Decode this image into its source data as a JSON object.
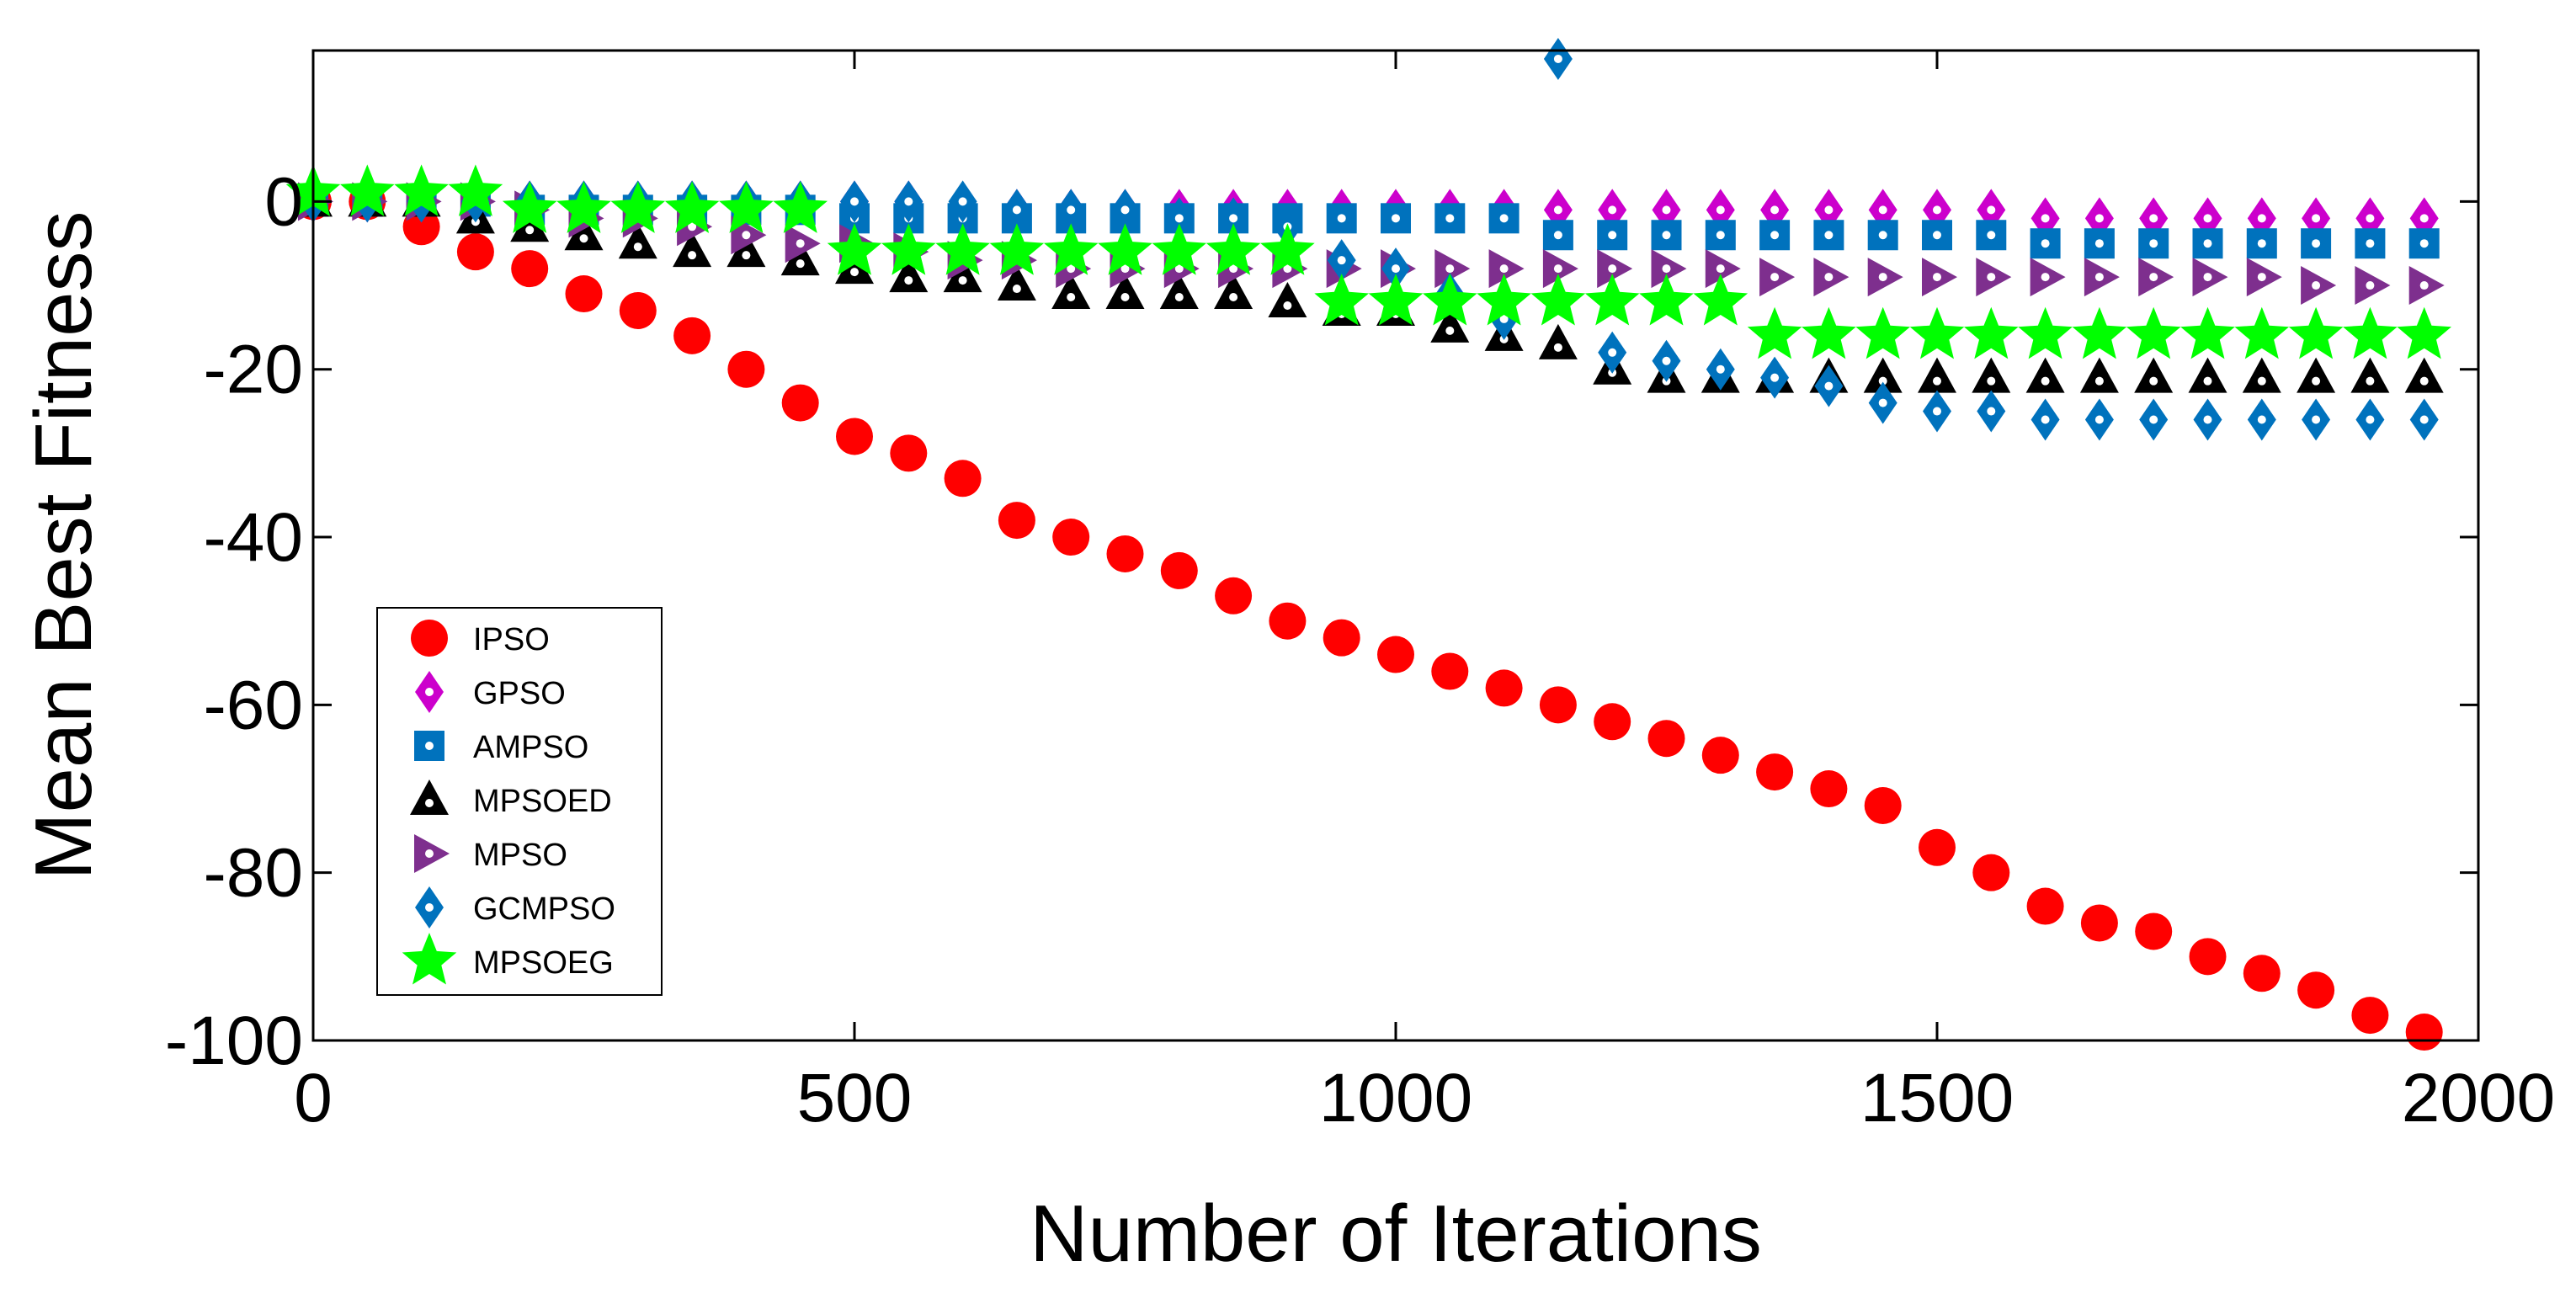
{
  "chart_data": {
    "type": "scatter",
    "title": "",
    "xlabel": "Number of Iterations",
    "ylabel": "Mean Best Fitness",
    "xlim": [
      0,
      2000
    ],
    "ylim": [
      -100,
      18
    ],
    "grid": false,
    "legend_position": "bottom-left",
    "x_ticks": [
      0,
      500,
      1000,
      1500,
      2000
    ],
    "x_tick_labels": [
      "0",
      "500",
      "1000",
      "1500",
      "2000"
    ],
    "y_ticks": [
      0,
      -20,
      -40,
      -60,
      -80,
      -100
    ],
    "y_tick_labels": [
      "0",
      "-20",
      "-40",
      "-60",
      "-80",
      "-100"
    ],
    "x": [
      0,
      50,
      100,
      150,
      200,
      250,
      300,
      350,
      400,
      450,
      500,
      550,
      600,
      650,
      700,
      750,
      800,
      850,
      900,
      950,
      1000,
      1050,
      1100,
      1150,
      1200,
      1250,
      1300,
      1350,
      1400,
      1450,
      1500,
      1550,
      1600,
      1650,
      1700,
      1750,
      1800,
      1850,
      1900,
      1950
    ],
    "series": [
      {
        "name": "IPSO",
        "marker": "circle",
        "color": "#ff0000",
        "inner_dot": false,
        "values": [
          0,
          0,
          -3,
          -6,
          -8,
          -11,
          -13,
          -16,
          -20,
          -24,
          -28,
          -30,
          -33,
          -38,
          -40,
          -42,
          -44,
          -47,
          -50,
          -52,
          -54,
          -56,
          -58,
          -60,
          -62,
          -64,
          -66,
          -68,
          -70,
          -72,
          -77,
          -80,
          -84,
          -86,
          -87,
          -90,
          -92,
          -94,
          -97,
          -99
        ]
      },
      {
        "name": "GPSO",
        "marker": "diamond",
        "color": "#cc00cc",
        "inner_dot": true,
        "values": [
          0,
          0,
          0,
          0,
          0,
          0,
          0,
          0,
          0,
          0,
          0,
          0,
          -1,
          -1,
          -1,
          -1,
          -1,
          -1,
          -1,
          -1,
          -1,
          -1,
          -1,
          -1,
          -1,
          -1,
          -1,
          -1,
          -1,
          -1,
          -1,
          -1,
          -2,
          -2,
          -2,
          -2,
          -2,
          -2,
          -2,
          -2
        ]
      },
      {
        "name": "AMPSO",
        "marker": "square",
        "color": "#0072bd",
        "inner_dot": true,
        "values": [
          0,
          0,
          0,
          0,
          -1,
          -1,
          -1,
          -1,
          -1,
          -1,
          -2,
          -2,
          -2,
          -2,
          -2,
          -2,
          -2,
          -2,
          -2,
          -2,
          -2,
          -2,
          -2,
          -4,
          -4,
          -4,
          -4,
          -4,
          -4,
          -4,
          -4,
          -4,
          -5,
          -5,
          -5,
          -5,
          -5,
          -5,
          -5,
          -5
        ]
      },
      {
        "name": "MPSOED",
        "marker": "triangle-up",
        "color": "#000000",
        "inner_dot": true,
        "values": [
          0,
          0,
          0,
          -2,
          -3,
          -4,
          -5,
          -6,
          -6,
          -7,
          -8,
          -9,
          -9,
          -10,
          -11,
          -11,
          -11,
          -11,
          -12,
          -13,
          -13,
          -15,
          -16,
          -17,
          -20,
          -21,
          -21,
          -21,
          -21,
          -21,
          -21,
          -21,
          -21,
          -21,
          -21,
          -21,
          -21,
          -21,
          -21,
          -21
        ]
      },
      {
        "name": "MPSO",
        "marker": "triangle-right",
        "color": "#7e2f8e",
        "inner_dot": true,
        "values": [
          0,
          0,
          0,
          0,
          -1,
          -2,
          -2,
          -3,
          -4,
          -5,
          -5,
          -6,
          -7,
          -7,
          -8,
          -8,
          -8,
          -8,
          -8,
          -8,
          -8,
          -8,
          -8,
          -8,
          -8,
          -8,
          -8,
          -9,
          -9,
          -9,
          -9,
          -9,
          -9,
          -9,
          -9,
          -9,
          -9,
          -10,
          -10,
          -10
        ]
      },
      {
        "name": "GCMPSO",
        "marker": "diamond",
        "color": "#0072bd",
        "inner_dot": true,
        "values": [
          0,
          0,
          0,
          0,
          0,
          0,
          0,
          0,
          0,
          0,
          0,
          0,
          0,
          -1,
          -1,
          -1,
          -2,
          -2,
          -3,
          -7,
          -8,
          -11,
          -14,
          17,
          -18,
          -19,
          -20,
          -21,
          -22,
          -24,
          -25,
          -25,
          -26,
          -26,
          -26,
          -26,
          -26,
          -26,
          -26,
          -26
        ]
      },
      {
        "name": "MPSOEG",
        "marker": "star",
        "color": "#00ff00",
        "inner_dot": false,
        "values": [
          1,
          1,
          1,
          1,
          -1,
          -1,
          -1,
          -1,
          -1,
          -1,
          -6,
          -6,
          -6,
          -6,
          -6,
          -6,
          -6,
          -6,
          -6,
          -12,
          -12,
          -12,
          -12,
          -12,
          -12,
          -12,
          -12,
          -16,
          -16,
          -16,
          -16,
          -16,
          -16,
          -16,
          -16,
          -16,
          -16,
          -16,
          -16,
          -16
        ]
      }
    ]
  }
}
